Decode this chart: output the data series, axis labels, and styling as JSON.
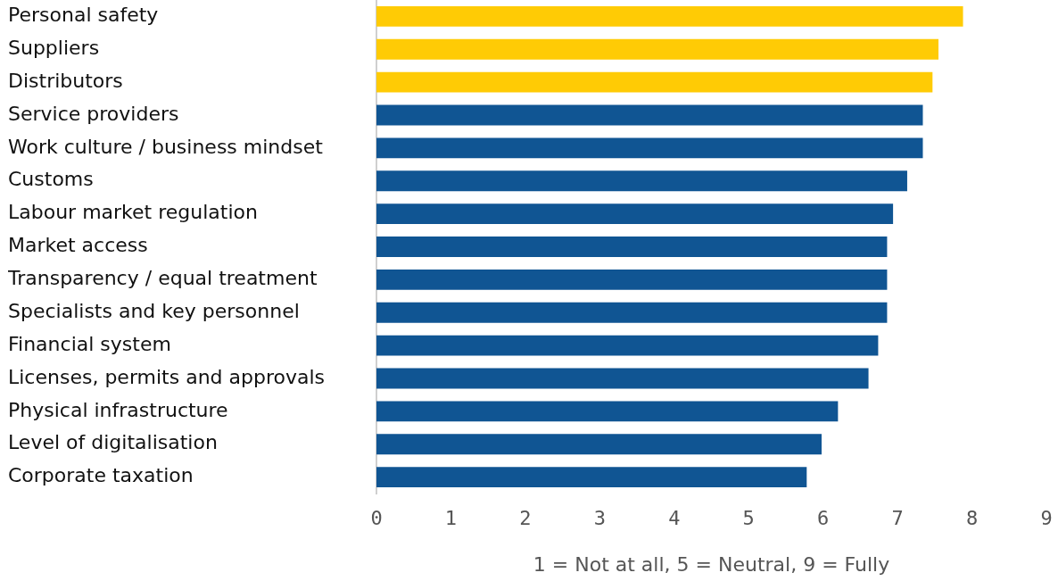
{
  "chart_data": {
    "type": "bar",
    "orientation": "horizontal",
    "categories": [
      "Personal safety",
      "Suppliers",
      "Distributors",
      "Service providers",
      "Work culture / business mindset",
      "Customs",
      "Labour market regulation",
      "Market access",
      "Transparency / equal treatment",
      "Specialists and key personnel",
      "Financial system",
      "Licenses, permits and approvals",
      "Physical infrastructure",
      "Level of digitalisation",
      "Corporate taxation"
    ],
    "values": [
      7.88,
      7.55,
      7.47,
      7.34,
      7.34,
      7.13,
      6.94,
      6.86,
      6.86,
      6.86,
      6.74,
      6.61,
      6.2,
      5.98,
      5.78
    ],
    "colors": [
      "#ffcb05",
      "#ffcb05",
      "#ffcb05",
      "#105593",
      "#105593",
      "#105593",
      "#105593",
      "#105593",
      "#105593",
      "#105593",
      "#105593",
      "#105593",
      "#105593",
      "#105593",
      "#105593"
    ],
    "xlim": [
      0,
      9
    ],
    "xticks": [
      0,
      1,
      2,
      3,
      4,
      5,
      6,
      7,
      8,
      9
    ],
    "xlabel": "1 = Not at all, 5 = Neutral, 9 = Fully"
  }
}
